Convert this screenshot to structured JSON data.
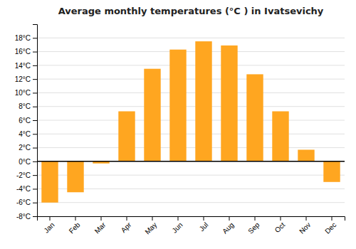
{
  "chart_data": {
    "type": "bar",
    "title": "Average monthly temperatures (°C ) in Ivatsevichy",
    "categories": [
      "Jan",
      "Feb",
      "Mar",
      "Apr",
      "May",
      "Jun",
      "Jul",
      "Aug",
      "Sep",
      "Oct",
      "Nov",
      "Dec"
    ],
    "values": [
      -6.0,
      -4.5,
      -0.3,
      7.3,
      13.5,
      16.3,
      17.5,
      16.9,
      12.7,
      7.3,
      1.7,
      -3.0
    ],
    "color": "#FFA620",
    "ylim": [
      -8,
      20
    ],
    "yticks": [
      {
        "value": -8,
        "label": "-8°C"
      },
      {
        "value": -6,
        "label": "-6°C"
      },
      {
        "value": -4,
        "label": "-4°C"
      },
      {
        "value": -2,
        "label": "-2°C"
      },
      {
        "value": 0,
        "label": "0°C"
      },
      {
        "value": 2,
        "label": "2°C"
      },
      {
        "value": 4,
        "label": "4°C"
      },
      {
        "value": 6,
        "label": "6°C"
      },
      {
        "value": 8,
        "label": "8°C"
      },
      {
        "value": 10,
        "label": "10°C"
      },
      {
        "value": 12,
        "label": "12°C"
      },
      {
        "value": 14,
        "label": "14°C"
      },
      {
        "value": 16,
        "label": "16°C"
      },
      {
        "value": 18,
        "label": "18°C"
      }
    ],
    "grid": true
  }
}
